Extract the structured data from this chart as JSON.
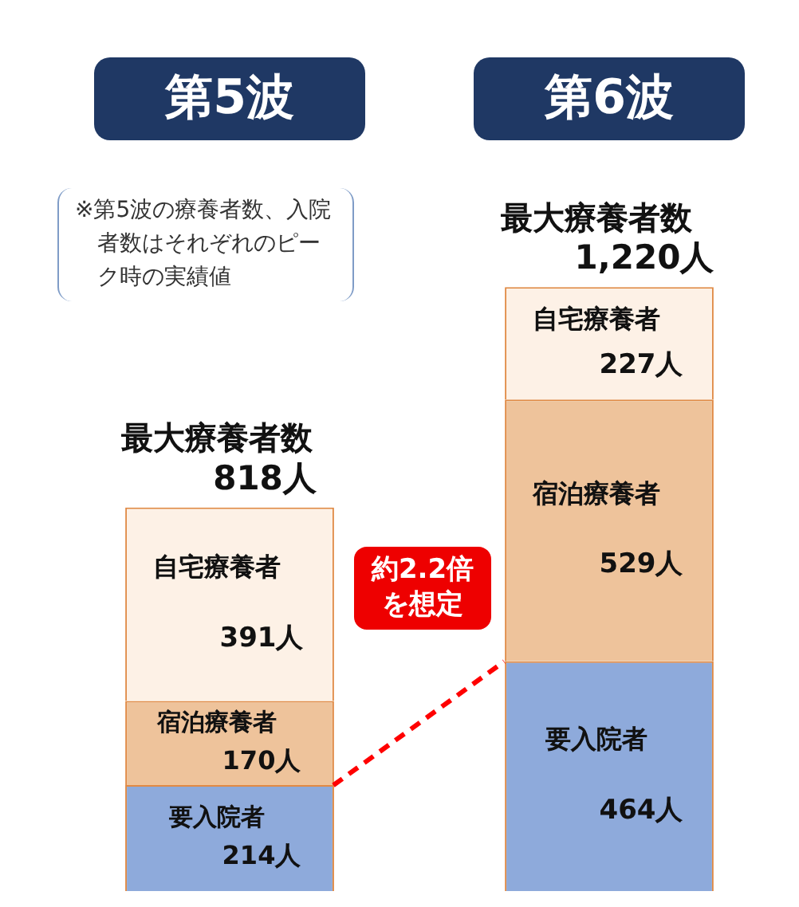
{
  "chart_data": {
    "type": "bar",
    "stacked": true,
    "categories": [
      "第5波",
      "第6波"
    ],
    "series": [
      {
        "name": "要入院者",
        "color": "#8eaadb",
        "values": [
          214,
          464
        ],
        "value_labels": [
          "214人",
          "464人"
        ]
      },
      {
        "name": "宿泊療養者",
        "color": "#eec39b",
        "values": [
          170,
          529
        ],
        "value_labels": [
          "170人",
          "529人"
        ]
      },
      {
        "name": "自宅療養者",
        "color": "#fdf1e6",
        "values": [
          391,
          227
        ],
        "value_labels": [
          "391人",
          "227人"
        ]
      }
    ],
    "annotations": [
      "最大療養者数 818人",
      "最大療養者数 1,220人",
      "※第5波の療養者数、入院者数はそれぞれのピーク時の実績値",
      "約2.2倍を想定"
    ]
  }
}
